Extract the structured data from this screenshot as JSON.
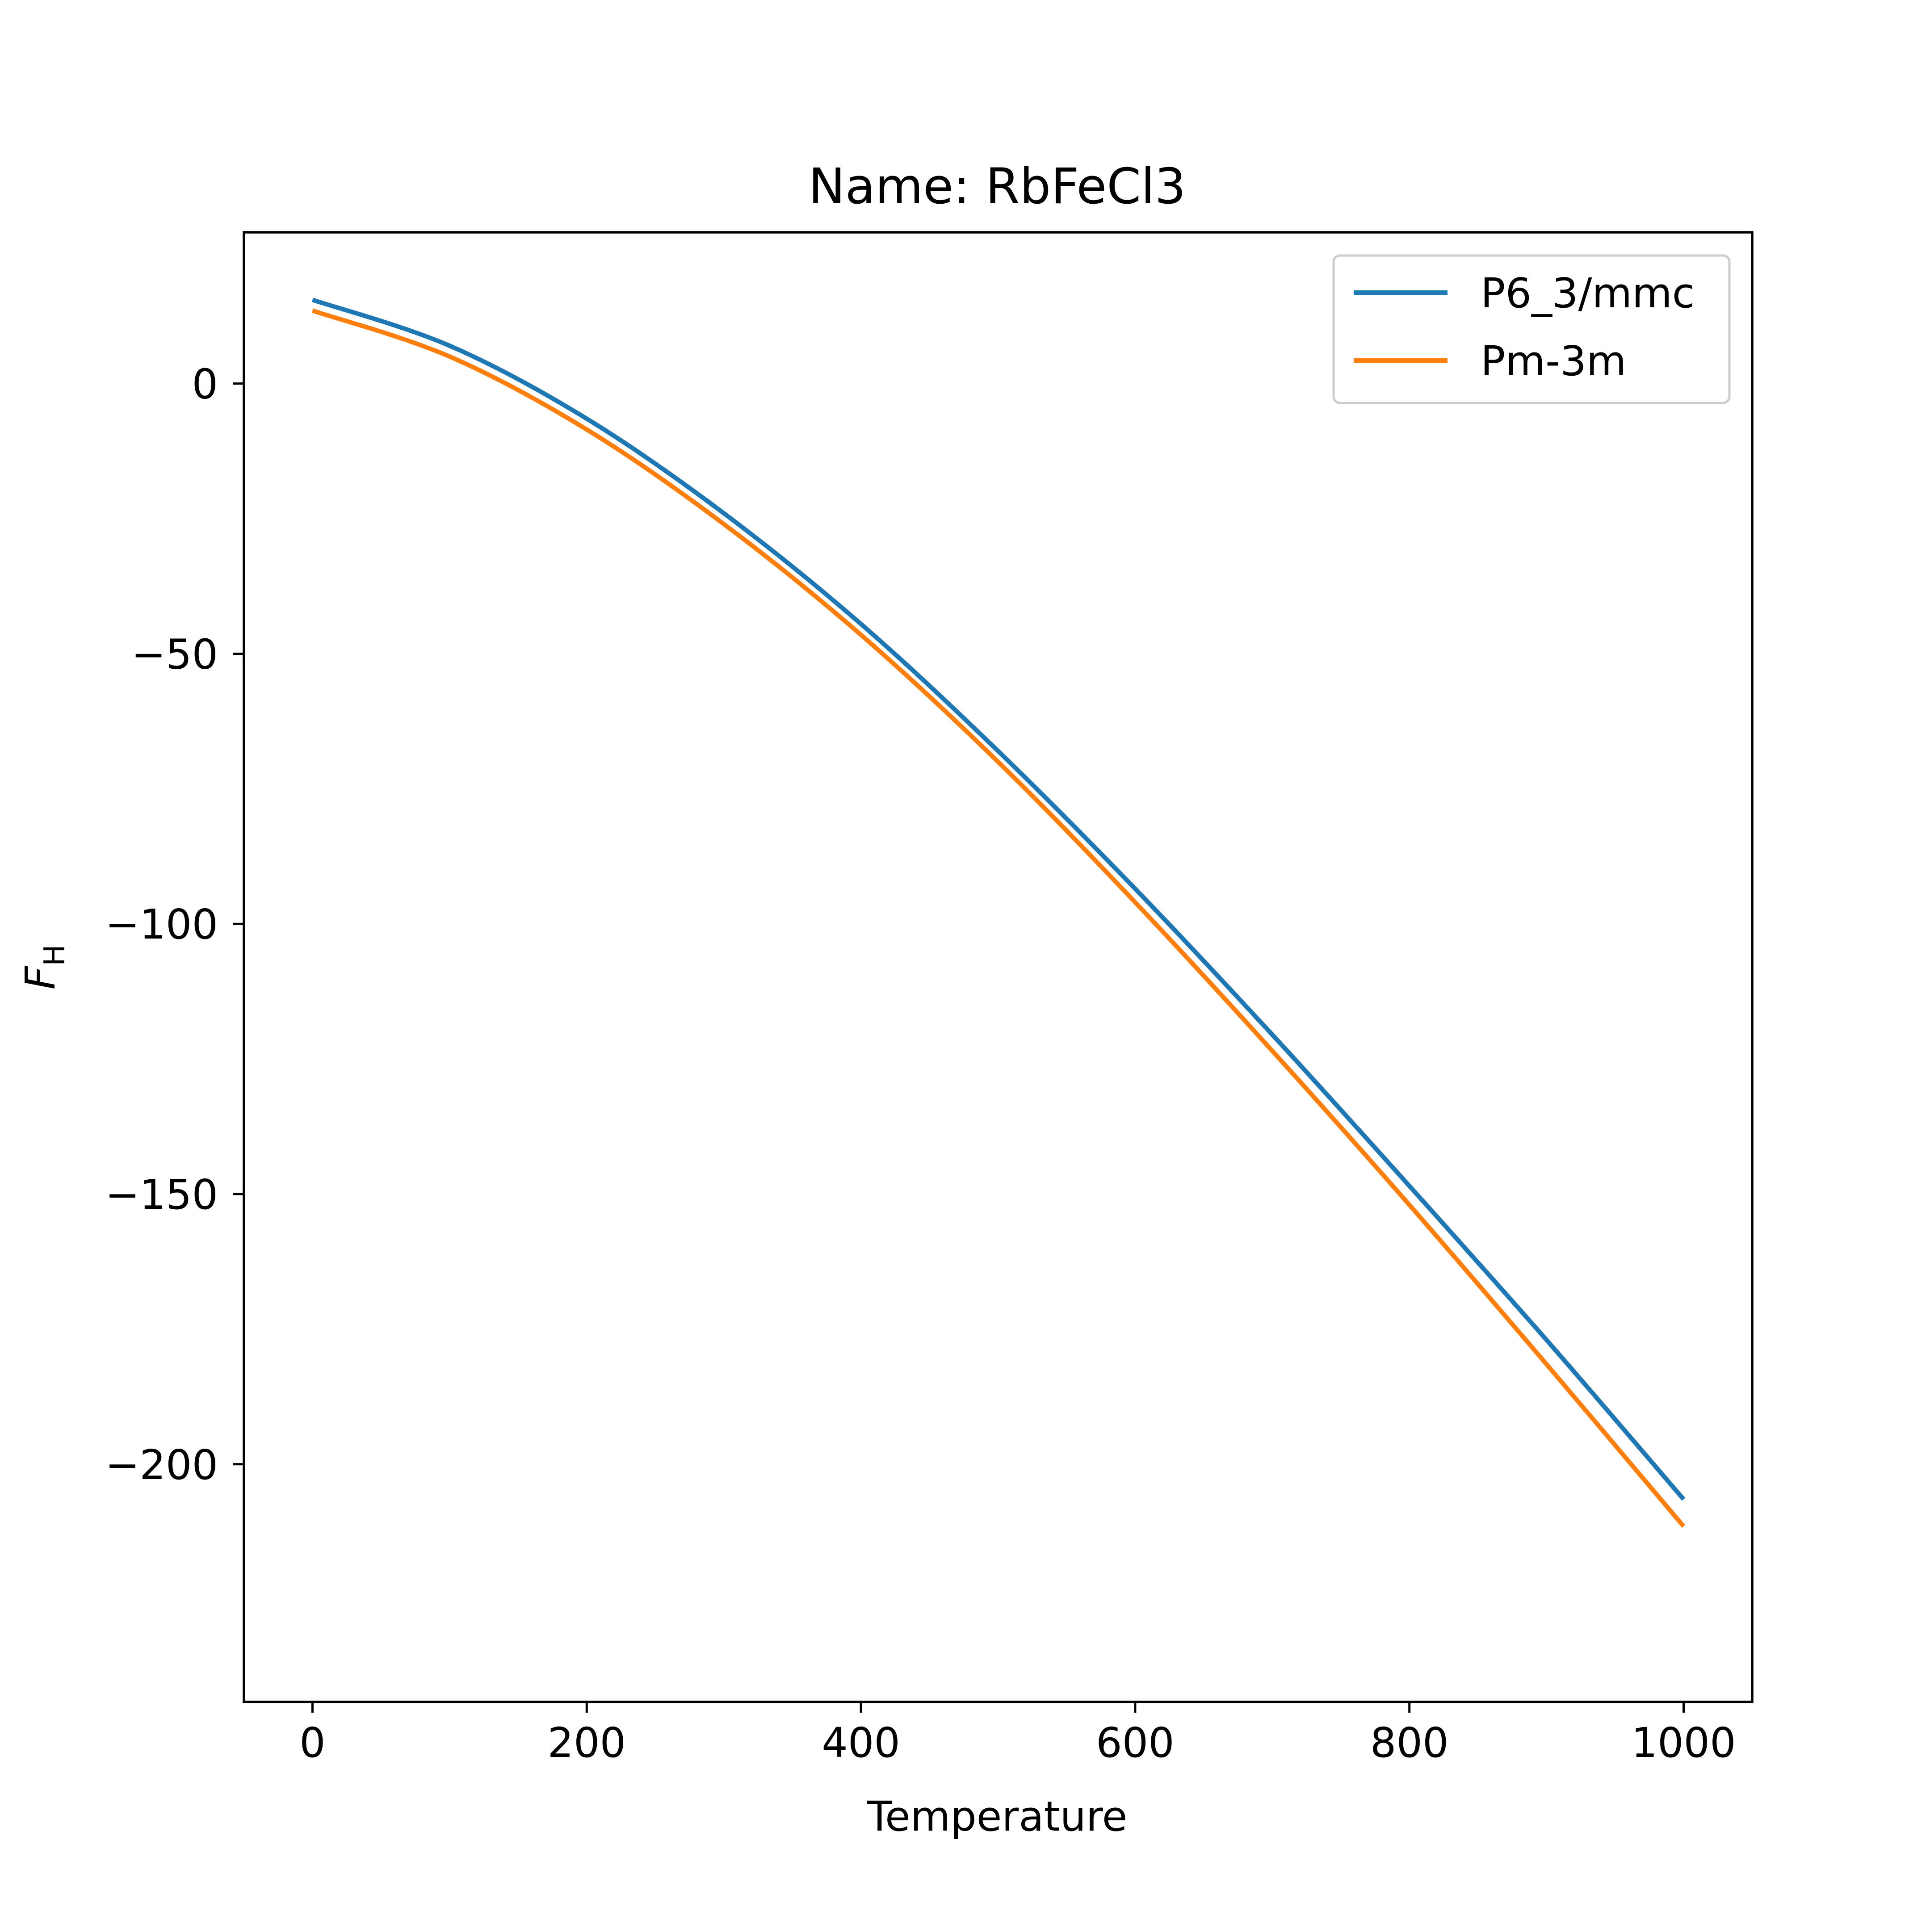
{
  "chart_data": {
    "type": "line",
    "title": "Name: RbFeCl3",
    "xlabel": "Temperature",
    "ylabel": "F",
    "ylabel_subscript": "H",
    "xlim": [
      -50,
      1050
    ],
    "ylim": [
      -244,
      28
    ],
    "xticks": [
      0,
      200,
      400,
      600,
      800,
      1000
    ],
    "xtick_labels": [
      "0",
      "200",
      "400",
      "600",
      "800",
      "1000"
    ],
    "yticks": [
      0,
      -50,
      -100,
      -150,
      -200
    ],
    "ytick_labels": [
      "0",
      "−50",
      "−100",
      "−150",
      "−200"
    ],
    "grid": false,
    "legend_position": "upper right",
    "series": [
      {
        "name": "P6_3/mmc",
        "color": "#1f77b4",
        "x": [
          0,
          100,
          200,
          300,
          400,
          500,
          600,
          700,
          800,
          900,
          1000
        ],
        "y": [
          15.5,
          7,
          -6.5,
          -24,
          -44.5,
          -68,
          -93.5,
          -120.5,
          -148.5,
          -177,
          -206.5
        ]
      },
      {
        "name": "Pm-3m",
        "color": "#ff7f0e",
        "x": [
          0,
          100,
          200,
          300,
          400,
          500,
          600,
          700,
          800,
          900,
          1000
        ],
        "y": [
          13.5,
          5,
          -8.5,
          -26,
          -46.5,
          -70,
          -96,
          -123.5,
          -152,
          -181.5,
          -211.5
        ]
      }
    ]
  }
}
